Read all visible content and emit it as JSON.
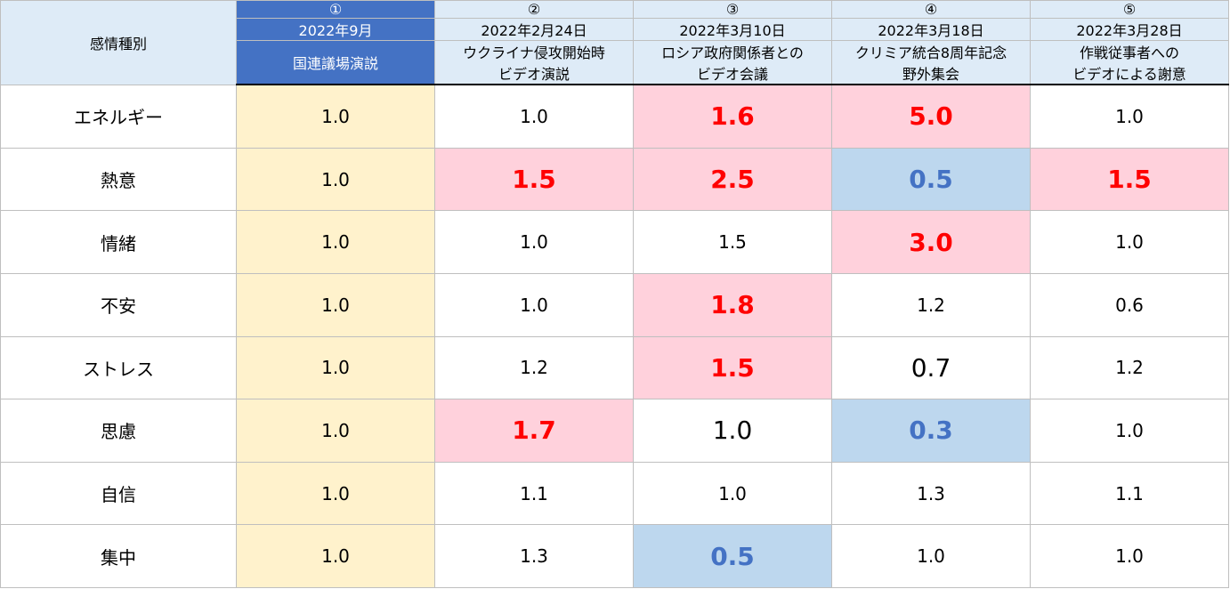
{
  "corner_label": "感情種別",
  "speeches": [
    {
      "num": "①",
      "date": "2022年9月",
      "event_line1": "国連議場演説",
      "event_line2": ""
    },
    {
      "num": "②",
      "date": "2022年2月24日",
      "event_line1": "ウクライナ侵攻開始時",
      "event_line2": "ビデオ演説"
    },
    {
      "num": "③",
      "date": "2022年3月10日",
      "event_line1": "ロシア政府関係者との",
      "event_line2": "ビデオ会議"
    },
    {
      "num": "④",
      "date": "2022年3月18日",
      "event_line1": "クリミア統合8周年記念",
      "event_line2": "野外集会"
    },
    {
      "num": "⑤",
      "date": "2022年3月28日",
      "event_line1": "作戦従事者への",
      "event_line2": "ビデオによる謝意"
    }
  ],
  "rows": [
    {
      "label": "エネルギー",
      "values": [
        "1.0",
        "1.0",
        "1.6",
        "5.0",
        "1.0"
      ],
      "styles": [
        "base",
        "",
        "up",
        "up",
        ""
      ]
    },
    {
      "label": "熱意",
      "values": [
        "1.0",
        "1.5",
        "2.5",
        "0.5",
        "1.5"
      ],
      "styles": [
        "base",
        "up",
        "up",
        "down",
        "up"
      ]
    },
    {
      "label": "情緒",
      "values": [
        "1.0",
        "1.0",
        "1.5",
        "3.0",
        "1.0"
      ],
      "styles": [
        "base",
        "",
        "",
        "up",
        ""
      ]
    },
    {
      "label": "不安",
      "values": [
        "1.0",
        "1.0",
        "1.8",
        "1.2",
        "0.6"
      ],
      "styles": [
        "base",
        "",
        "up",
        "",
        ""
      ]
    },
    {
      "label": "ストレス",
      "values": [
        "1.0",
        "1.2",
        "1.5",
        "0.7",
        "1.2"
      ],
      "styles": [
        "base",
        "",
        "up",
        "big",
        ""
      ]
    },
    {
      "label": "思慮",
      "values": [
        "1.0",
        "1.7",
        "1.0",
        "0.3",
        "1.0"
      ],
      "styles": [
        "base",
        "up",
        "big",
        "down",
        ""
      ]
    },
    {
      "label": "自信",
      "values": [
        "1.0",
        "1.1",
        "1.0",
        "1.3",
        "1.1"
      ],
      "styles": [
        "base",
        "",
        "",
        "",
        ""
      ]
    },
    {
      "label": "集中",
      "values": [
        "1.0",
        "1.3",
        "0.5",
        "1.0",
        "1.0"
      ],
      "styles": [
        "base",
        "",
        "down",
        "",
        ""
      ]
    }
  ],
  "colors": {
    "header_bg": "#deebf7",
    "selected_header_bg": "#4472c4",
    "baseline_bg": "#fff2cc",
    "increase_bg": "#ffd1dc",
    "increase_text": "#ff0000",
    "decrease_bg": "#bdd7ee",
    "decrease_text": "#4472c4"
  }
}
